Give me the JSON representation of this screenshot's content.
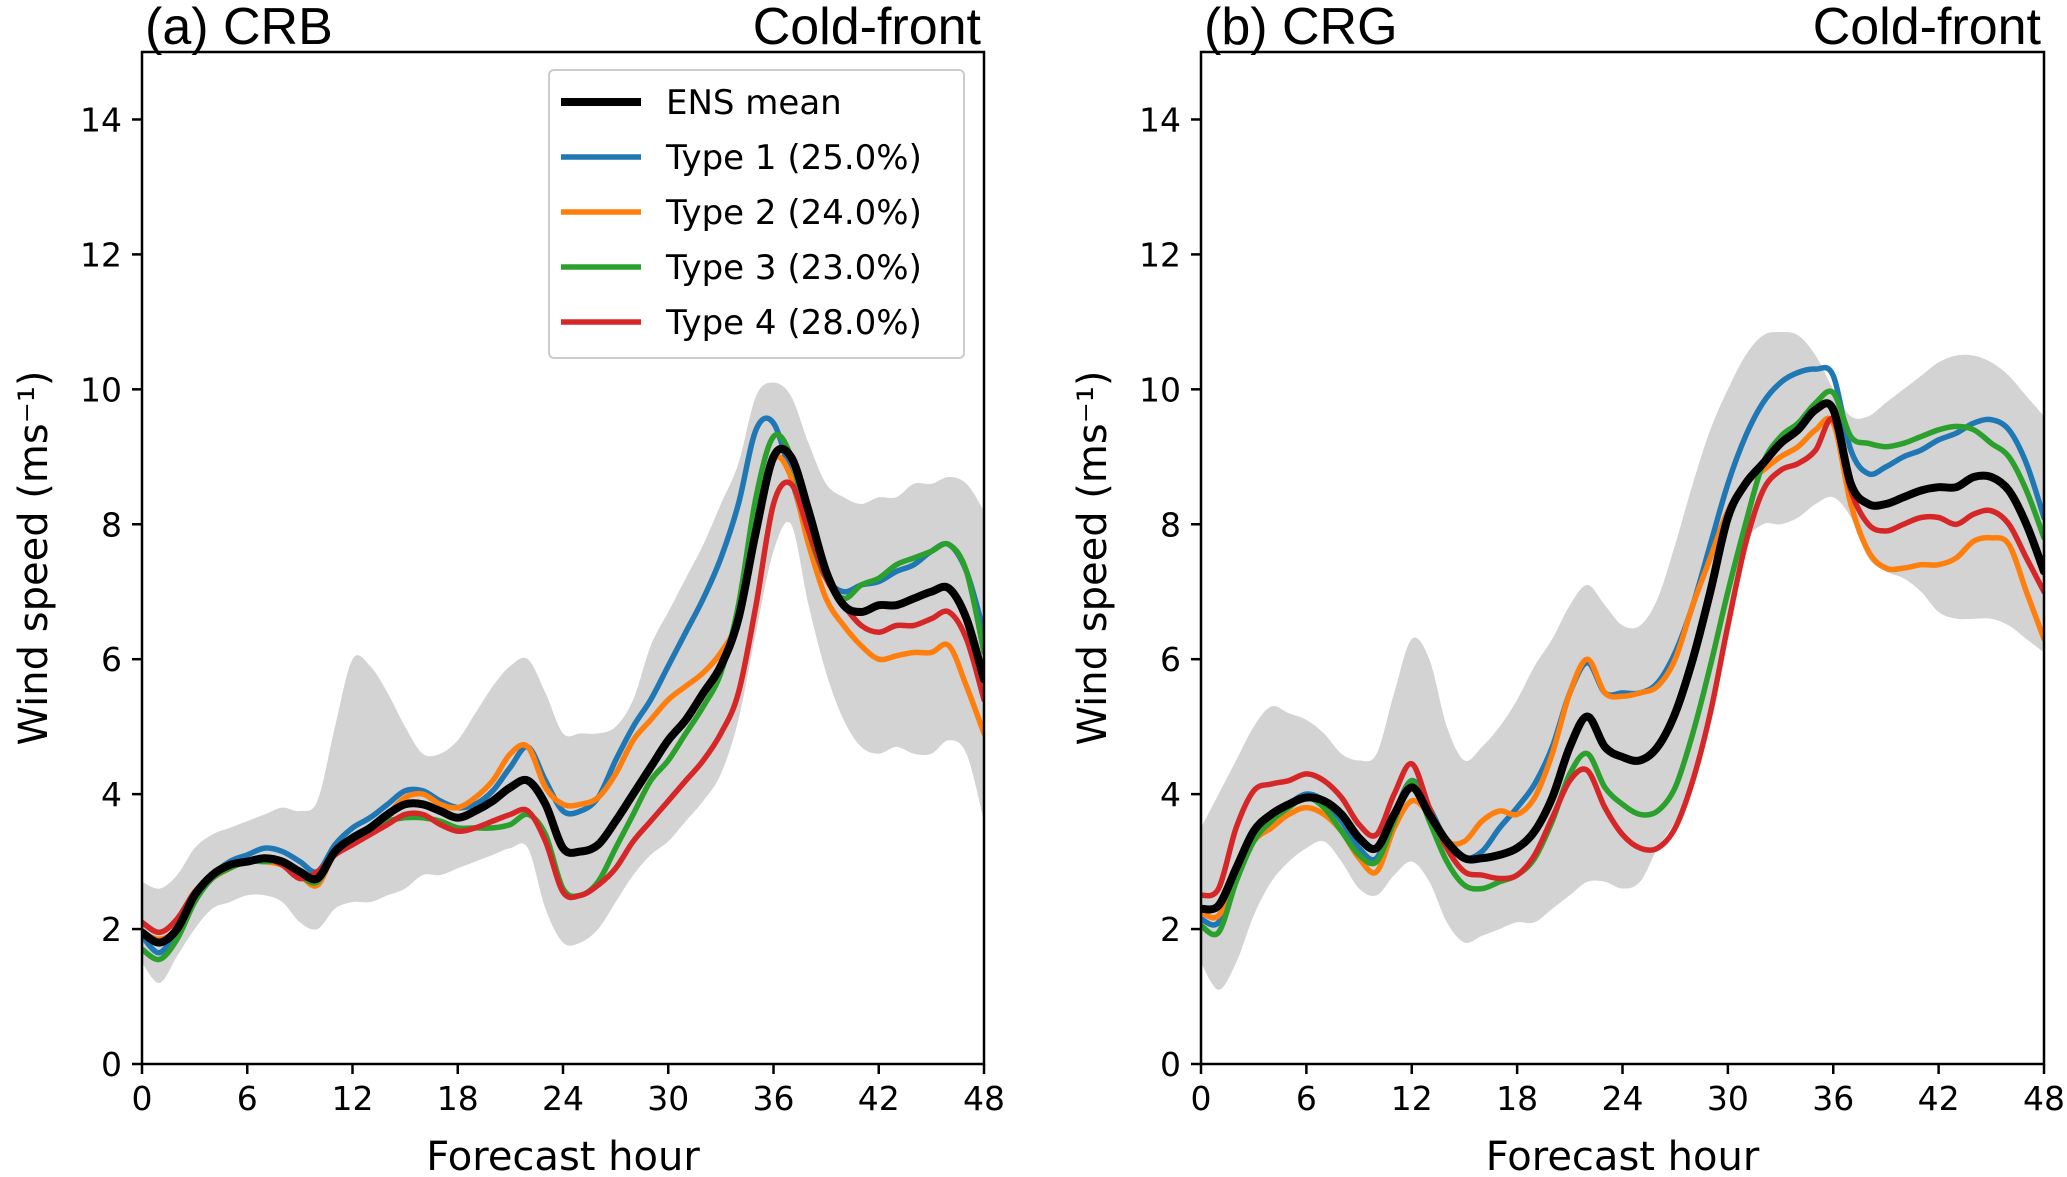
{
  "chart_data": [
    {
      "type": "line",
      "title_left": "(a) CRB",
      "title_right": "Cold-front",
      "xlabel": "Forecast hour",
      "ylabel": "Wind speed (ms⁻¹)",
      "xlim": [
        0,
        48
      ],
      "ylim": [
        0,
        15
      ],
      "xticks": [
        0,
        6,
        12,
        18,
        24,
        30,
        36,
        42,
        48
      ],
      "yticks": [
        0,
        2,
        4,
        6,
        8,
        10,
        12,
        14
      ],
      "grid": false,
      "legend": {
        "placement": "top-right",
        "entries": [
          "ENS mean",
          "Type 1 (25.0%)",
          "Type 2 (24.0%)",
          "Type 3 (23.0%)",
          "Type 4 (28.0%)"
        ]
      },
      "x": [
        0,
        1,
        2,
        3,
        4,
        5,
        6,
        7,
        8,
        9,
        10,
        11,
        12,
        13,
        14,
        15,
        16,
        17,
        18,
        19,
        20,
        21,
        22,
        23,
        24,
        25,
        26,
        27,
        28,
        29,
        30,
        31,
        32,
        33,
        34,
        35,
        36,
        37,
        38,
        39,
        40,
        41,
        42,
        43,
        44,
        45,
        46,
        47,
        48
      ],
      "band": {
        "color": "#d3d3d3",
        "upper": [
          2.7,
          2.6,
          2.8,
          3.2,
          3.4,
          3.5,
          3.6,
          3.7,
          3.8,
          3.75,
          3.9,
          5.0,
          6.0,
          5.9,
          5.5,
          5.0,
          4.6,
          4.6,
          4.8,
          5.2,
          5.6,
          5.9,
          6.0,
          5.5,
          4.9,
          4.9,
          4.9,
          5.0,
          5.4,
          6.2,
          6.7,
          7.2,
          7.7,
          8.3,
          8.9,
          9.9,
          10.1,
          9.9,
          9.2,
          8.6,
          8.4,
          8.3,
          8.4,
          8.4,
          8.6,
          8.6,
          8.7,
          8.6,
          8.2
        ],
        "lower": [
          1.5,
          1.2,
          1.6,
          2.0,
          2.3,
          2.4,
          2.5,
          2.5,
          2.4,
          2.1,
          2.0,
          2.3,
          2.4,
          2.4,
          2.5,
          2.6,
          2.8,
          2.8,
          2.9,
          3.0,
          3.1,
          3.2,
          3.2,
          2.3,
          1.8,
          1.8,
          2.0,
          2.4,
          2.8,
          3.1,
          3.3,
          3.6,
          3.9,
          4.3,
          5.1,
          6.4,
          7.6,
          8.0,
          6.8,
          5.8,
          5.1,
          4.7,
          4.6,
          4.7,
          4.6,
          4.6,
          4.8,
          4.6,
          3.6
        ]
      },
      "series": [
        {
          "name": "ENS mean",
          "color": "#000000",
          "values": [
            1.95,
            1.8,
            2.0,
            2.5,
            2.8,
            2.95,
            3.0,
            3.05,
            3.0,
            2.85,
            2.75,
            3.15,
            3.35,
            3.5,
            3.7,
            3.85,
            3.85,
            3.75,
            3.65,
            3.75,
            3.9,
            4.1,
            4.2,
            3.85,
            3.2,
            3.15,
            3.25,
            3.6,
            4.0,
            4.4,
            4.8,
            5.1,
            5.5,
            5.9,
            6.6,
            7.9,
            9.0,
            9.0,
            8.2,
            7.3,
            6.8,
            6.7,
            6.8,
            6.8,
            6.9,
            7.0,
            7.05,
            6.6,
            5.7
          ]
        },
        {
          "name": "Type 1 (25.0%)",
          "color": "#1f77b4",
          "values": [
            1.9,
            1.65,
            2.0,
            2.5,
            2.8,
            3.0,
            3.1,
            3.2,
            3.15,
            3.0,
            2.85,
            3.25,
            3.5,
            3.65,
            3.85,
            4.05,
            4.05,
            3.9,
            3.8,
            3.85,
            4.05,
            4.4,
            4.7,
            4.2,
            3.75,
            3.75,
            3.95,
            4.5,
            5.0,
            5.4,
            5.9,
            6.4,
            6.9,
            7.5,
            8.3,
            9.4,
            9.5,
            8.7,
            7.8,
            7.2,
            7.0,
            7.1,
            7.15,
            7.3,
            7.4,
            7.6,
            7.7,
            7.3,
            6.4
          ]
        },
        {
          "name": "Type 2 (24.0%)",
          "color": "#ff7f0e",
          "values": [
            1.95,
            1.85,
            2.0,
            2.5,
            2.75,
            2.9,
            3.0,
            3.0,
            2.95,
            2.8,
            2.65,
            3.15,
            3.35,
            3.5,
            3.7,
            3.95,
            4.0,
            3.85,
            3.8,
            3.95,
            4.2,
            4.6,
            4.7,
            4.1,
            3.85,
            3.85,
            3.95,
            4.3,
            4.8,
            5.1,
            5.4,
            5.6,
            5.8,
            6.1,
            6.6,
            7.8,
            8.95,
            8.7,
            7.7,
            6.9,
            6.5,
            6.2,
            6.0,
            6.05,
            6.1,
            6.1,
            6.2,
            5.6,
            4.9
          ]
        },
        {
          "name": "Type 3 (23.0%)",
          "color": "#2ca02c",
          "values": [
            1.7,
            1.55,
            1.85,
            2.4,
            2.75,
            2.9,
            3.0,
            3.0,
            3.0,
            2.8,
            2.7,
            3.15,
            3.35,
            3.5,
            3.6,
            3.65,
            3.65,
            3.6,
            3.5,
            3.5,
            3.5,
            3.55,
            3.7,
            3.4,
            2.6,
            2.5,
            2.7,
            3.2,
            3.7,
            4.2,
            4.5,
            4.9,
            5.3,
            5.8,
            6.8,
            8.4,
            9.3,
            9.0,
            7.9,
            7.2,
            6.9,
            7.1,
            7.2,
            7.4,
            7.5,
            7.6,
            7.7,
            7.3,
            6.1
          ]
        },
        {
          "name": "Type 4 (28.0%)",
          "color": "#d62728",
          "values": [
            2.1,
            1.95,
            2.15,
            2.55,
            2.8,
            2.95,
            3.0,
            3.05,
            2.95,
            2.75,
            2.85,
            3.1,
            3.25,
            3.4,
            3.55,
            3.7,
            3.7,
            3.55,
            3.45,
            3.5,
            3.6,
            3.7,
            3.75,
            3.3,
            2.55,
            2.5,
            2.65,
            2.9,
            3.3,
            3.6,
            3.9,
            4.2,
            4.5,
            4.9,
            5.5,
            6.8,
            8.3,
            8.6,
            7.9,
            7.2,
            6.8,
            6.5,
            6.4,
            6.5,
            6.5,
            6.6,
            6.7,
            6.3,
            5.4
          ]
        }
      ]
    },
    {
      "type": "line",
      "title_left": "(b) CRG",
      "title_right": "Cold-front",
      "xlabel": "Forecast hour",
      "ylabel": "Wind speed (ms⁻¹)",
      "xlim": [
        0,
        48
      ],
      "ylim": [
        0,
        15
      ],
      "xticks": [
        0,
        6,
        12,
        18,
        24,
        30,
        36,
        42,
        48
      ],
      "yticks": [
        0,
        2,
        4,
        6,
        8,
        10,
        12,
        14
      ],
      "grid": false,
      "x": [
        0,
        1,
        2,
        3,
        4,
        5,
        6,
        7,
        8,
        9,
        10,
        11,
        12,
        13,
        14,
        15,
        16,
        17,
        18,
        19,
        20,
        21,
        22,
        23,
        24,
        25,
        26,
        27,
        28,
        29,
        30,
        31,
        32,
        33,
        34,
        35,
        36,
        37,
        38,
        39,
        40,
        41,
        42,
        43,
        44,
        45,
        46,
        47,
        48
      ],
      "band": {
        "color": "#d3d3d3",
        "upper": [
          3.5,
          4.0,
          4.5,
          5.0,
          5.3,
          5.2,
          5.1,
          4.9,
          4.6,
          4.5,
          4.6,
          5.5,
          6.3,
          6.0,
          5.0,
          4.5,
          4.7,
          5.0,
          5.4,
          5.9,
          6.3,
          6.8,
          7.1,
          6.8,
          6.5,
          6.5,
          6.9,
          7.7,
          8.6,
          9.4,
          10.0,
          10.5,
          10.8,
          10.85,
          10.8,
          10.5,
          10.0,
          9.6,
          9.6,
          9.8,
          10.0,
          10.2,
          10.4,
          10.5,
          10.5,
          10.4,
          10.2,
          9.9,
          9.6
        ]
      },
      "band_lower": [
        1.5,
        1.1,
        1.5,
        2.2,
        2.7,
        3.0,
        3.2,
        3.3,
        3.0,
        2.6,
        2.5,
        2.8,
        3.0,
        2.7,
        2.1,
        1.8,
        1.9,
        2.0,
        2.1,
        2.1,
        2.3,
        2.5,
        2.7,
        2.7,
        2.6,
        2.7,
        3.2,
        3.6,
        4.2,
        5.3,
        6.7,
        7.7,
        8.0,
        8.0,
        8.1,
        8.3,
        8.4,
        8.1,
        7.5,
        7.3,
        7.2,
        7.0,
        6.7,
        6.6,
        6.6,
        6.6,
        6.5,
        6.3,
        6.1
      ],
      "series": [
        {
          "name": "ENS mean",
          "color": "#000000",
          "values": [
            2.3,
            2.35,
            2.9,
            3.45,
            3.7,
            3.85,
            3.95,
            3.9,
            3.7,
            3.35,
            3.2,
            3.7,
            4.1,
            3.7,
            3.3,
            3.05,
            3.05,
            3.1,
            3.2,
            3.45,
            3.95,
            4.7,
            5.15,
            4.7,
            4.55,
            4.5,
            4.7,
            5.2,
            6.0,
            7.0,
            8.1,
            8.6,
            8.9,
            9.2,
            9.4,
            9.7,
            9.7,
            8.6,
            8.3,
            8.3,
            8.4,
            8.5,
            8.55,
            8.55,
            8.7,
            8.7,
            8.5,
            8.0,
            7.3
          ]
        },
        {
          "name": "Type 1 (25.0%)",
          "color": "#1f77b4",
          "values": [
            2.15,
            2.1,
            2.8,
            3.35,
            3.65,
            3.85,
            4.0,
            3.9,
            3.6,
            3.2,
            3.05,
            3.7,
            4.2,
            3.8,
            3.3,
            3.05,
            3.15,
            3.5,
            3.8,
            4.15,
            4.7,
            5.5,
            5.95,
            5.5,
            5.5,
            5.5,
            5.65,
            6.1,
            6.8,
            7.7,
            8.6,
            9.3,
            9.8,
            10.1,
            10.25,
            10.3,
            10.2,
            9.1,
            8.75,
            8.85,
            9.0,
            9.1,
            9.25,
            9.35,
            9.5,
            9.55,
            9.4,
            8.9,
            8.1
          ]
        },
        {
          "name": "Type 2 (24.0%)",
          "color": "#ff7f0e",
          "values": [
            2.25,
            2.2,
            2.8,
            3.3,
            3.5,
            3.7,
            3.8,
            3.7,
            3.45,
            3.05,
            2.85,
            3.5,
            3.9,
            3.7,
            3.3,
            3.3,
            3.6,
            3.75,
            3.7,
            3.95,
            4.6,
            5.5,
            6.0,
            5.5,
            5.45,
            5.5,
            5.6,
            6.0,
            6.8,
            7.5,
            8.2,
            8.6,
            8.8,
            9.0,
            9.15,
            9.4,
            9.5,
            8.3,
            7.6,
            7.35,
            7.35,
            7.4,
            7.4,
            7.5,
            7.75,
            7.8,
            7.7,
            7.0,
            6.3
          ]
        },
        {
          "name": "Type 3 (23.0%)",
          "color": "#2ca02c",
          "values": [
            2.05,
            1.95,
            2.7,
            3.3,
            3.6,
            3.8,
            3.95,
            3.8,
            3.45,
            3.1,
            3.0,
            3.6,
            4.2,
            3.6,
            3.0,
            2.65,
            2.6,
            2.7,
            2.8,
            3.05,
            3.6,
            4.3,
            4.6,
            4.1,
            3.85,
            3.7,
            3.75,
            4.1,
            4.9,
            5.9,
            7.0,
            8.0,
            8.9,
            9.3,
            9.5,
            9.8,
            9.95,
            9.3,
            9.2,
            9.15,
            9.2,
            9.3,
            9.4,
            9.45,
            9.4,
            9.2,
            9.0,
            8.5,
            7.8
          ]
        },
        {
          "name": "Type 4 (28.0%)",
          "color": "#d62728",
          "values": [
            2.5,
            2.6,
            3.5,
            4.05,
            4.15,
            4.2,
            4.3,
            4.2,
            3.95,
            3.55,
            3.4,
            4.0,
            4.45,
            3.8,
            3.2,
            2.85,
            2.8,
            2.75,
            2.8,
            3.1,
            3.65,
            4.2,
            4.35,
            3.8,
            3.4,
            3.2,
            3.2,
            3.5,
            4.2,
            5.2,
            6.5,
            7.7,
            8.5,
            8.8,
            8.9,
            9.1,
            9.55,
            8.5,
            8.0,
            7.9,
            8.0,
            8.1,
            8.1,
            8.0,
            8.15,
            8.2,
            8.0,
            7.5,
            7.0
          ]
        }
      ]
    }
  ]
}
